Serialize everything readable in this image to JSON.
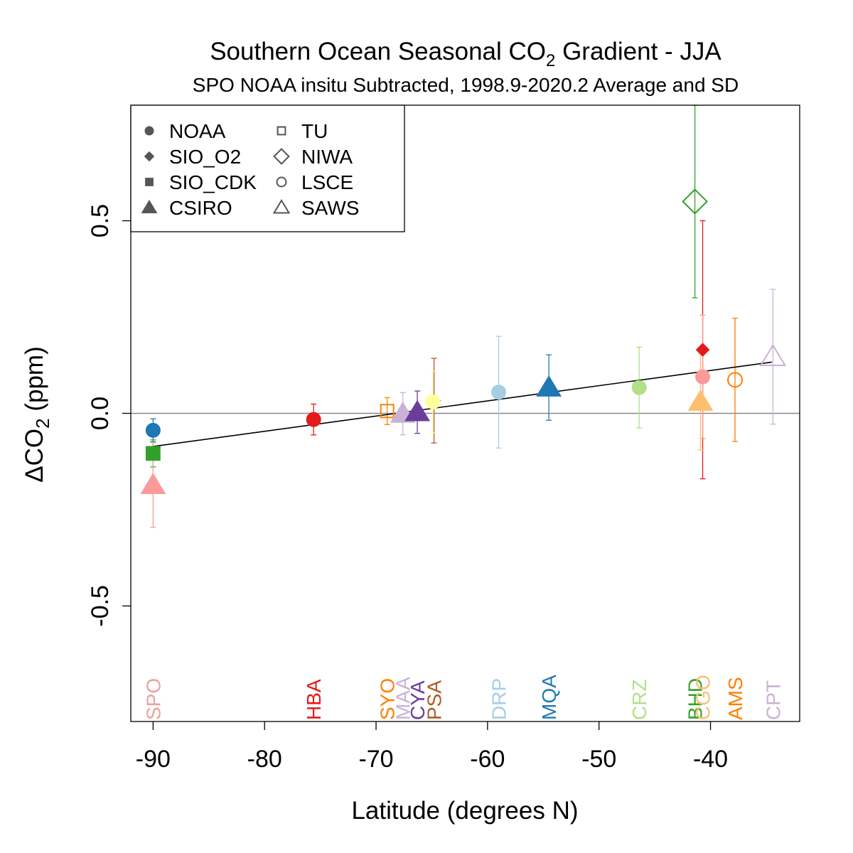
{
  "chart_data": {
    "type": "scatter",
    "title": "Southern Ocean Seasonal CO",
    "title_sub": "2",
    "title_rest": " Gradient - JJA",
    "subtitle": "SPO NOAA insitu Subtracted, 1998.9-2020.2 Average and SD",
    "xlabel": "Latitude (degrees N)",
    "ylabel_pre": "ΔCO",
    "ylabel_sub": "2",
    "ylabel_post": " (ppm)",
    "xlim": [
      -92,
      -32
    ],
    "ylim": [
      -0.8,
      0.8
    ],
    "xticks": [
      -90,
      -80,
      -70,
      -60,
      -50,
      -40
    ],
    "xtick_labels": [
      "-90",
      "-80",
      "-70",
      "-60",
      "-50",
      "-40"
    ],
    "yticks": [
      -0.5,
      0.0,
      0.5
    ],
    "ytick_labels": [
      "-0.5",
      "0.0",
      "0.5"
    ],
    "zero_line": 0,
    "grid": false,
    "legend_position": "top-left",
    "legend": [
      {
        "name": "NOAA",
        "marker": "circle-filled"
      },
      {
        "name": "SIO_O2",
        "marker": "diamond-filled"
      },
      {
        "name": "SIO_CDK",
        "marker": "square-filled"
      },
      {
        "name": "CSIRO",
        "marker": "triangle-filled"
      },
      {
        "name": "TU",
        "marker": "square-open"
      },
      {
        "name": "NIWA",
        "marker": "diamond-open"
      },
      {
        "name": "LSCE",
        "marker": "circle-open"
      },
      {
        "name": "SAWS",
        "marker": "triangle-open"
      }
    ],
    "fit_line": {
      "x": [
        -90,
        -34.5
      ],
      "y": [
        -0.086,
        0.133
      ]
    },
    "points": [
      {
        "site": "SPO",
        "lab": "NOAA",
        "x": -90,
        "y": -0.044,
        "sd": 0.03,
        "color": "#1f78b4"
      },
      {
        "site": "SPO",
        "lab": "SIO_CDK",
        "x": -90,
        "y": -0.104,
        "sd": 0.035,
        "color": "#33a02c"
      },
      {
        "site": "SPO",
        "lab": "CSIRO",
        "x": -90,
        "y": -0.186,
        "sd": 0.11,
        "color": "#fb9a99"
      },
      {
        "site": "HBA",
        "lab": "NOAA",
        "x": -75.6,
        "y": -0.016,
        "sd": 0.04,
        "color": "#e31a1c"
      },
      {
        "site": "SYO",
        "lab": "TU",
        "x": -69.0,
        "y": 0.006,
        "sd": 0.035,
        "color": "#ff7f00"
      },
      {
        "site": "MAA",
        "lab": "CSIRO",
        "x": -67.6,
        "y": -0.001,
        "sd": 0.055,
        "color": "#cab2d6"
      },
      {
        "site": "CYA",
        "lab": "CSIRO",
        "x": -66.3,
        "y": 0.003,
        "sd": 0.055,
        "color": "#6a3d9a"
      },
      {
        "site": "PSA",
        "lab": "SIO_O2",
        "x": -64.8,
        "y": 0.033,
        "sd": 0.11,
        "color": "#b15928"
      },
      {
        "site": "PSA",
        "lab": "NOAA",
        "x": -64.9,
        "y": 0.03,
        "sd": 0.08,
        "color": "#ffff99"
      },
      {
        "site": "DRP",
        "lab": "NOAA",
        "x": -59.0,
        "y": 0.055,
        "sd": 0.145,
        "color": "#a6cee3"
      },
      {
        "site": "MQA",
        "lab": "CSIRO",
        "x": -54.5,
        "y": 0.067,
        "sd": 0.085,
        "color": "#1f78b4"
      },
      {
        "site": "CRZ",
        "lab": "NOAA",
        "x": -46.4,
        "y": 0.067,
        "sd": 0.105,
        "color": "#b2df8a"
      },
      {
        "site": "BHD",
        "lab": "NIWA",
        "x": -41.4,
        "y": 0.55,
        "sd": 0.25,
        "color": "#33a02c"
      },
      {
        "site": "BHD",
        "lab": "SIO_O2",
        "x": -40.7,
        "y": 0.165,
        "sd": 0.335,
        "color": "#e31a1c"
      },
      {
        "site": "CGO",
        "lab": "NOAA",
        "x": -40.7,
        "y": 0.095,
        "sd": 0.16,
        "color": "#fb9a99"
      },
      {
        "site": "CGO",
        "lab": "CSIRO",
        "x": -40.9,
        "y": 0.03,
        "sd": 0.125,
        "color": "#fdbf6f"
      },
      {
        "site": "AMS",
        "lab": "LSCE",
        "x": -37.8,
        "y": 0.087,
        "sd": 0.16,
        "color": "#ff7f00"
      },
      {
        "site": "CPT",
        "lab": "SAWS",
        "x": -34.4,
        "y": 0.147,
        "sd": 0.175,
        "color": "#cab2d6"
      }
    ],
    "site_labels": [
      {
        "label": "SPO",
        "x": -90,
        "color": "#e8a39c"
      },
      {
        "label": "HBA",
        "x": -75.6,
        "color": "#e31a1c"
      },
      {
        "label": "SYO",
        "x": -69.0,
        "color": "#ff7f00"
      },
      {
        "label": "MAA",
        "x": -67.6,
        "color": "#cab2d6"
      },
      {
        "label": "CYA",
        "x": -66.3,
        "color": "#6a3d9a"
      },
      {
        "label": "PSA",
        "x": -64.8,
        "color": "#b15928"
      },
      {
        "label": "DRP",
        "x": -59.0,
        "color": "#a6cee3"
      },
      {
        "label": "MQA",
        "x": -54.5,
        "color": "#1f78b4"
      },
      {
        "label": "CRZ",
        "x": -46.4,
        "color": "#b2df8a"
      },
      {
        "label": "BHD",
        "x": -41.4,
        "color": "#33a02c"
      },
      {
        "label": "CGO",
        "x": -40.7,
        "color": "#fdbf6f"
      },
      {
        "label": "AMS",
        "x": -37.8,
        "color": "#ff7f00"
      },
      {
        "label": "CPT",
        "x": -34.4,
        "color": "#cab2d6"
      }
    ]
  }
}
